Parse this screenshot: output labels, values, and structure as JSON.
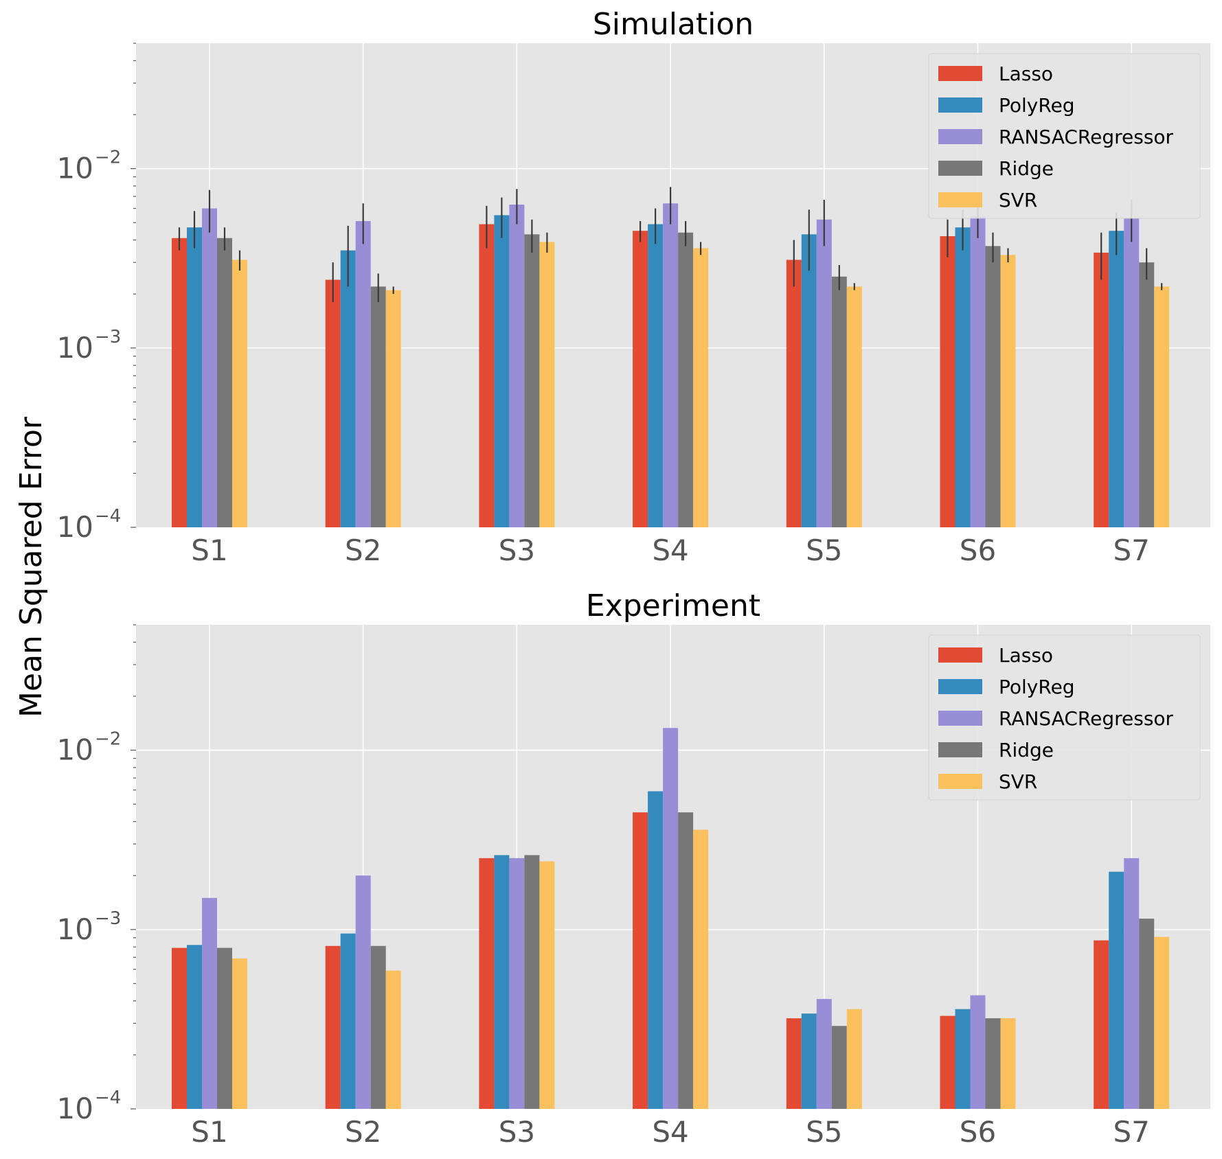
{
  "chart_data": [
    {
      "type": "bar",
      "title": "Simulation",
      "xlabel": "",
      "ylabel": "Mean Squared Error",
      "yscale": "log",
      "ylim": [
        0.0001,
        0.05
      ],
      "yticks": [
        {
          "value": 0.0001,
          "base": "10",
          "exp": "−4"
        },
        {
          "value": 0.001,
          "base": "10",
          "exp": "−3"
        },
        {
          "value": 0.01,
          "base": "10",
          "exp": "−2"
        }
      ],
      "grid": true,
      "legend_position": "top-right",
      "categories": [
        "S1",
        "S2",
        "S3",
        "S4",
        "S5",
        "S6",
        "S7"
      ],
      "series": [
        {
          "name": "Lasso",
          "color": "#E24A33",
          "values": [
            0.0041,
            0.0024,
            0.0049,
            0.0045,
            0.0031,
            0.0042,
            0.0034
          ],
          "errors": [
            0.0006,
            0.0006,
            0.0013,
            0.0006,
            0.0009,
            0.001,
            0.001
          ]
        },
        {
          "name": "PolyReg",
          "color": "#348ABD",
          "values": [
            0.0047,
            0.0035,
            0.0055,
            0.0049,
            0.0043,
            0.0047,
            0.0045
          ],
          "errors": [
            0.0011,
            0.0013,
            0.0014,
            0.0011,
            0.0016,
            0.0012,
            0.0012
          ]
        },
        {
          "name": "RANSACRegressor",
          "color": "#988ED5",
          "values": [
            0.006,
            0.0051,
            0.0063,
            0.0064,
            0.0052,
            0.0054,
            0.0053
          ],
          "errors": [
            0.0016,
            0.0013,
            0.0014,
            0.0015,
            0.0015,
            0.0013,
            0.0014
          ]
        },
        {
          "name": "Ridge",
          "color": "#777777",
          "values": [
            0.0041,
            0.0022,
            0.0043,
            0.0044,
            0.0025,
            0.0037,
            0.003
          ],
          "errors": [
            0.0006,
            0.0004,
            0.0009,
            0.0007,
            0.0004,
            0.0007,
            0.0006
          ]
        },
        {
          "name": "SVR",
          "color": "#FBC15E",
          "values": [
            0.0031,
            0.0021,
            0.0039,
            0.0036,
            0.0022,
            0.0033,
            0.0022
          ],
          "errors": [
            0.0004,
            0.0001,
            0.0005,
            0.0003,
            0.0001,
            0.0003,
            0.0001
          ]
        }
      ]
    },
    {
      "type": "bar",
      "title": "Experiment",
      "xlabel": "",
      "ylabel": "Mean Squared Error",
      "yscale": "log",
      "ylim": [
        0.0001,
        0.05
      ],
      "yticks": [
        {
          "value": 0.0001,
          "base": "10",
          "exp": "−4"
        },
        {
          "value": 0.001,
          "base": "10",
          "exp": "−3"
        },
        {
          "value": 0.01,
          "base": "10",
          "exp": "−2"
        }
      ],
      "grid": true,
      "legend_position": "top-right",
      "categories": [
        "S1",
        "S2",
        "S3",
        "S4",
        "S5",
        "S6",
        "S7"
      ],
      "series": [
        {
          "name": "Lasso",
          "color": "#E24A33",
          "values": [
            0.00079,
            0.00081,
            0.0025,
            0.0045,
            0.00032,
            0.00033,
            0.00087
          ]
        },
        {
          "name": "PolyReg",
          "color": "#348ABD",
          "values": [
            0.00082,
            0.00095,
            0.0026,
            0.0059,
            0.00034,
            0.00036,
            0.0021
          ]
        },
        {
          "name": "RANSACRegressor",
          "color": "#988ED5",
          "values": [
            0.0015,
            0.002,
            0.0025,
            0.0133,
            0.00041,
            0.00043,
            0.0025
          ]
        },
        {
          "name": "Ridge",
          "color": "#777777",
          "values": [
            0.00079,
            0.00081,
            0.0026,
            0.0045,
            0.00029,
            0.00032,
            0.00115
          ]
        },
        {
          "name": "SVR",
          "color": "#FBC15E",
          "values": [
            0.00069,
            0.00059,
            0.0024,
            0.0036,
            0.00036,
            0.00032,
            0.00091
          ]
        }
      ]
    }
  ]
}
